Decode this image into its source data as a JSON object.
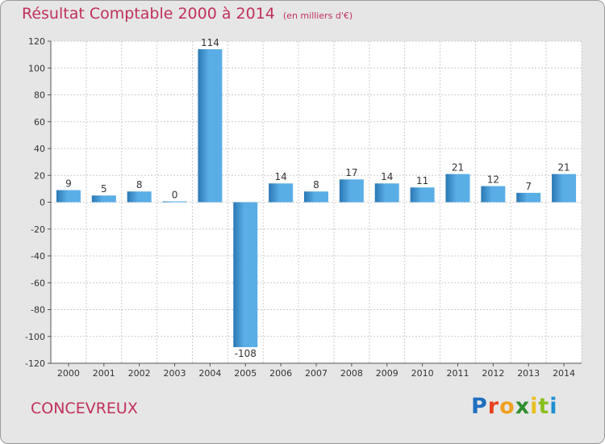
{
  "header": {
    "title": "Résultat Comptable 2000 à 2014",
    "unit": "(en milliers d'€)"
  },
  "footer": {
    "commune": "CONCEVREUX",
    "logo_letters": [
      "P",
      "r",
      "o",
      "x",
      "i",
      "t",
      "i"
    ]
  },
  "colors": {
    "bar_light": "#5aaee6",
    "bar_dark": "#2a78b4",
    "title": "#c0305a",
    "background": "#e6e6e6"
  },
  "chart_data": {
    "type": "bar",
    "title": "Résultat Comptable 2000 à 2014",
    "subtitle": "(en milliers d'€)",
    "categories": [
      "2000",
      "2001",
      "2002",
      "2003",
      "2004",
      "2005",
      "2006",
      "2007",
      "2008",
      "2009",
      "2010",
      "2011",
      "2012",
      "2013",
      "2014"
    ],
    "values": [
      9,
      5,
      8,
      0,
      114,
      -108,
      14,
      8,
      17,
      14,
      11,
      21,
      12,
      7,
      21
    ],
    "ylim": [
      -120,
      120
    ],
    "yticks": [
      -120,
      -100,
      -80,
      -60,
      -40,
      -20,
      0,
      20,
      40,
      60,
      80,
      100,
      120
    ],
    "xlabel": "",
    "ylabel": "",
    "grid": true
  }
}
